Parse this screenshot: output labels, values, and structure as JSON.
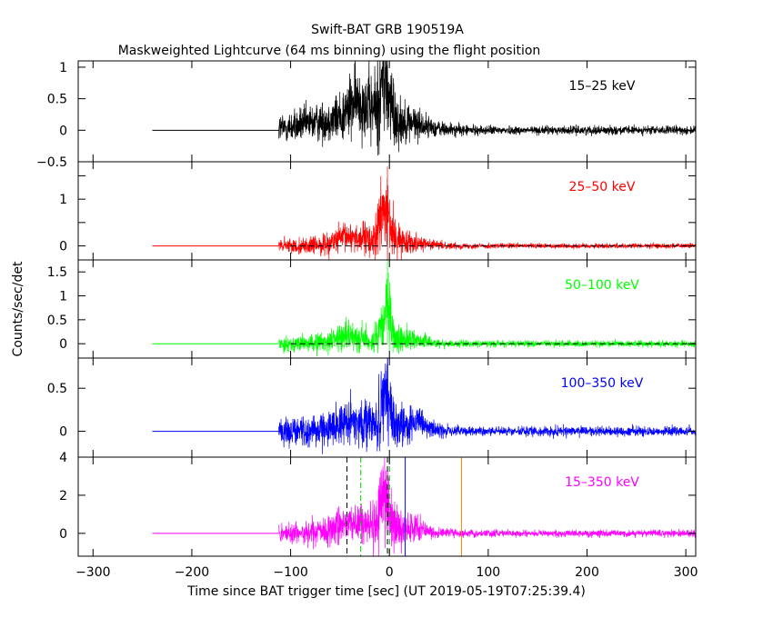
{
  "chart_data": {
    "type": "line",
    "title": "Swift-BAT GRB 190519A",
    "subtitle": "Maskweighted Lightcurve (64 ms binning) using the flight position",
    "xlabel": "Time since BAT trigger time [sec] (UT 2019-05-19T07:25:39.4)",
    "ylabel": "Counts/sec/det",
    "xlim": [
      -315,
      310
    ],
    "x_ticks": [
      -300,
      -200,
      -100,
      0,
      100,
      200,
      300
    ],
    "x_tick_labels": [
      "−300",
      "−200",
      "−100",
      "0",
      "100",
      "200",
      "300"
    ],
    "flat_start": -240,
    "data_start": -112,
    "panels": [
      {
        "band": "15–25 keV",
        "color": "#000000",
        "ylim": [
          -0.5,
          1.1
        ],
        "y_ticks": [
          -0.5,
          0,
          0.5,
          1
        ],
        "y_tick_labels": [
          "−0.5",
          "0",
          "0.5",
          "1"
        ],
        "noise_pre": 0.08,
        "noise_post": 0.03,
        "peak": 1.1,
        "features": [
          {
            "t": -45,
            "amp": 0.18,
            "width": 35
          },
          {
            "t": -30,
            "amp": 0.3,
            "width": 10
          },
          {
            "t": -5,
            "amp": 0.6,
            "width": 5
          },
          {
            "t": 15,
            "amp": 0.1,
            "width": 20
          }
        ],
        "zero_line": false
      },
      {
        "band": "25–50 keV",
        "color": "#ff0000",
        "ylim": [
          -0.3,
          1.8
        ],
        "y_ticks": [
          0,
          0.5,
          1,
          1.5
        ],
        "y_tick_labels": [
          "0",
          "",
          "1",
          ""
        ],
        "noise_pre": 0.07,
        "noise_post": 0.025,
        "peak": 1.7,
        "features": [
          {
            "t": -38,
            "amp": 0.2,
            "width": 15
          },
          {
            "t": -5,
            "amp": 0.7,
            "width": 5
          },
          {
            "t": 15,
            "amp": 0.1,
            "width": 18
          }
        ],
        "zero_line": true
      },
      {
        "band": "50–100 keV",
        "color": "#00ff00",
        "ylim": [
          -0.3,
          1.75
        ],
        "y_ticks": [
          0,
          0.5,
          1,
          1.5
        ],
        "y_tick_labels": [
          "0",
          "0.5",
          "1",
          "1.5"
        ],
        "noise_pre": 0.07,
        "noise_post": 0.03,
        "peak": 1.75,
        "features": [
          {
            "t": -40,
            "amp": 0.17,
            "width": 15
          },
          {
            "t": -3,
            "amp": 0.6,
            "width": 4
          },
          {
            "t": 18,
            "amp": 0.1,
            "width": 15
          }
        ],
        "zero_line": true
      },
      {
        "band": "100–350 keV",
        "color": "#0000ff",
        "ylim": [
          -0.3,
          0.85
        ],
        "y_ticks": [
          0,
          0.5
        ],
        "y_tick_labels": [
          "0",
          "0.5"
        ],
        "noise_pre": 0.07,
        "noise_post": 0.025,
        "peak": 0.85,
        "features": [
          {
            "t": -35,
            "amp": 0.12,
            "width": 18
          },
          {
            "t": -3,
            "amp": 0.35,
            "width": 4
          },
          {
            "t": 20,
            "amp": 0.1,
            "width": 15
          }
        ],
        "zero_line": false
      },
      {
        "band": "15–350 keV",
        "color": "#ff00ff",
        "ylim": [
          -1.2,
          4
        ],
        "y_ticks": [
          0,
          2,
          4
        ],
        "y_tick_labels": [
          "0",
          "2",
          "4"
        ],
        "noise_pre": 0.25,
        "noise_post": 0.08,
        "peak": 3.4,
        "features": [
          {
            "t": -38,
            "amp": 0.6,
            "width": 15
          },
          {
            "t": -5,
            "amp": 1.8,
            "width": 5
          },
          {
            "t": 18,
            "amp": 0.3,
            "width": 16
          }
        ],
        "zero_line": false,
        "markers": [
          {
            "t": -43,
            "color": "#000000",
            "style": "dashed"
          },
          {
            "t": -29,
            "color": "#00cc00",
            "style": "dashdot"
          },
          {
            "t": -2,
            "color": "#000000",
            "style": "dashed"
          },
          {
            "t": 0,
            "color": "#00aa00",
            "style": "dashed"
          },
          {
            "t": 16,
            "color": "#0000ff",
            "style": "solid"
          },
          {
            "t": 73,
            "color": "#ff8800",
            "style": "solid"
          }
        ]
      }
    ]
  }
}
